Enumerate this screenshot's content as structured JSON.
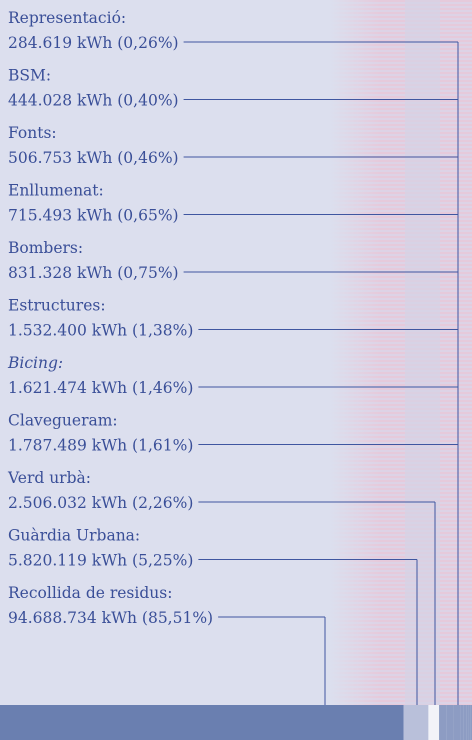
{
  "chart_data": {
    "type": "stacked-bar",
    "categories": [
      "Representació:",
      "BSM:",
      "Fonts:",
      "Enllumenat:",
      "Bombers:",
      "Estructures:",
      "Bicing:",
      "Clavegueram:",
      "Verd urbà:",
      "Guàrdia Urbana:",
      "Recollida de residus:"
    ],
    "values": [
      284619,
      444028,
      506753,
      715493,
      831328,
      1532400,
      1621474,
      1787489,
      2506032,
      5820119,
      94688734
    ],
    "value_labels": [
      "284.619 kWh (0,26%)",
      "444.028 kWh (0,40%)",
      "506.753 kWh (0,46%)",
      "715.493 kWh (0,65%)",
      "831.328 kWh (0,75%)",
      "1.532.400 kWh (1,38%)",
      "1.621.474 kWh (1,46%)",
      "1.787.489 kWh (1,61%)",
      "2.506.032 kWh (2,26%)",
      "5.820.119 kWh (5,25%)",
      "94.688.734 kWh (85,51%)"
    ],
    "colors": [
      "#8d9cc3",
      "#8d9cc3",
      "#8d9cc3",
      "#8d9cc3",
      "#8d9cc3",
      "#8d9cc3",
      "#8d9cc3",
      "#8d9cc3",
      "#f2f3f8",
      "#b9c0da",
      "#6a7fb0"
    ]
  }
}
